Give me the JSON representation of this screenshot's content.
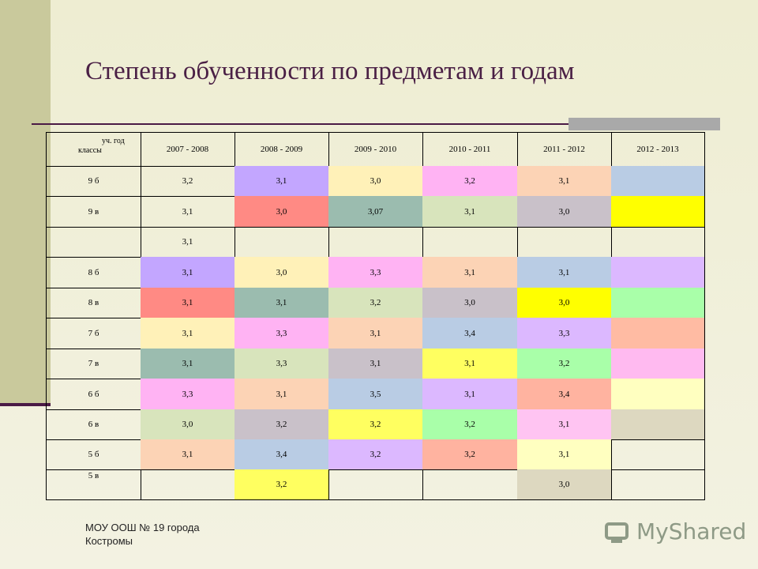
{
  "title": "Степень обученности по предметам и годам",
  "table": {
    "corner": [
      "уч. год",
      "классы"
    ],
    "header": [
      "2007 - 2008",
      "2008 - 2009",
      "2009 - 2010",
      "2010 - 2011",
      "2011 - 2012",
      "2012 - 2013"
    ],
    "rows": [
      {
        "label": "9 б",
        "cells": [
          "3,2",
          "3,1",
          "3,0",
          "3,2",
          "3,1",
          null
        ],
        "colors": [
          null,
          "#c3a6ff",
          "#fff1b8",
          "#ffb3f3",
          "#fcd3b5",
          "#b9cce4"
        ]
      },
      {
        "label": "9 в",
        "cells": [
          "3,1",
          "3,0",
          "3,07",
          "3,1",
          "3,0",
          null
        ],
        "colors": [
          null,
          "#ff8a84",
          "#9bbcaf",
          "#d8e4bc",
          "#c9c1c9",
          "#ffff00"
        ]
      },
      {
        "label": null,
        "cells": [
          "3,1",
          null,
          null,
          null,
          null,
          null
        ],
        "colors": [
          null,
          null,
          null,
          null,
          null,
          null
        ]
      },
      {
        "label": "8 б",
        "cells": [
          "3,1",
          "3,0",
          "3,3",
          "3,1",
          "3,1",
          null
        ],
        "colors": [
          "#c3a6ff",
          "#fff1b8",
          "#ffb3f3",
          "#fcd3b5",
          "#b9cce4",
          "#dcb8ff"
        ]
      },
      {
        "label": "8 в",
        "cells": [
          "3,1",
          "3,1",
          "3,2",
          "3,0",
          "3,0",
          null
        ],
        "colors": [
          "#ff8a84",
          "#9bbcaf",
          "#d8e4bc",
          "#c9c1c9",
          "#ffff00",
          "#a9ffa9"
        ]
      },
      {
        "label": "7 б",
        "cells": [
          "3,1",
          "3,3",
          "3,1",
          "3,4",
          "3,3",
          null
        ],
        "colors": [
          "#fff1b8",
          "#ffb3f3",
          "#fcd3b5",
          "#b9cce4",
          "#dcb8ff",
          "#ffbba3"
        ]
      },
      {
        "label": "7 в",
        "cells": [
          "3,1",
          "3,3",
          "3,1",
          "3,1",
          "3,2",
          null
        ],
        "colors": [
          "#9bbcaf",
          "#d8e4bc",
          "#c9c1c9",
          "#ffff60",
          "#a9ffa9",
          "#ffbaf0"
        ]
      },
      {
        "label": "6 б",
        "cells": [
          "3,3",
          "3,1",
          "3,5",
          "3,1",
          "3,4",
          null
        ],
        "colors": [
          "#ffb3f3",
          "#fcd3b5",
          "#b9cce4",
          "#dcb8ff",
          "#ffb3a0",
          "#ffffc0"
        ]
      },
      {
        "label": "6 в",
        "cells": [
          "3,0",
          "3,2",
          "3,2",
          "3,2",
          "3,1",
          null
        ],
        "colors": [
          "#d8e4bc",
          "#c9c1c9",
          "#ffff60",
          "#a9ffa9",
          "#ffc4f2",
          "#ddd8c0"
        ]
      },
      {
        "label": "5 б",
        "cells": [
          "3,1",
          "3,4",
          "3,2",
          "3,2",
          "3,1",
          null
        ],
        "colors": [
          "#fcd3b5",
          "#b9cce4",
          "#dcb8ff",
          "#ffb3a0",
          "#ffffc0",
          null
        ]
      },
      {
        "label": "5 в",
        "cells": [
          null,
          "3,2",
          null,
          null,
          "3,0",
          null
        ],
        "colors": [
          null,
          "#ffff60",
          null,
          null,
          "#ddd8c0",
          null
        ]
      }
    ]
  },
  "footer": [
    "МОУ ООШ № 19 города",
    "Костромы"
  ],
  "logo": "MyShared"
}
